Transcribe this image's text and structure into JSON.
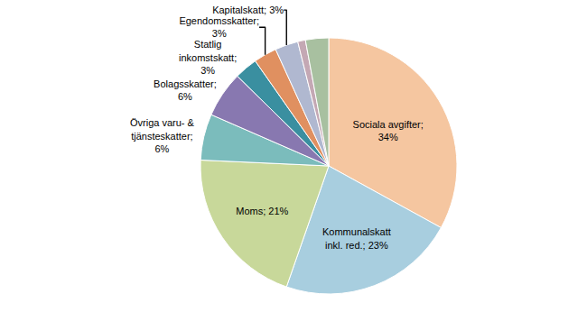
{
  "chart_data": {
    "type": "pie",
    "categories": [
      "Sociala avgifter;\n34%",
      "Kommunalskatt\ninkl. red.; 23%",
      "Moms; 21%",
      "Övriga varu- &\ntjänsteskatter;\n6%",
      "Bolagsskatter;\n6%",
      "Statlig\ninkomstskatt;\n3%",
      "Egendomsskatter;\n3%",
      "Kapitalskatt; 3%",
      null,
      null
    ],
    "values": [
      34,
      23,
      21,
      6,
      6,
      3,
      3,
      3,
      1,
      3
    ],
    "colors": [
      "#F5C6A0",
      "#A8CEDF",
      "#C8D89A",
      "#7BBCBC",
      "#8878B0",
      "#3A8FA0",
      "#E09060",
      "#B0B8D0",
      "#C4A8B4",
      "#A8C0A0"
    ]
  }
}
